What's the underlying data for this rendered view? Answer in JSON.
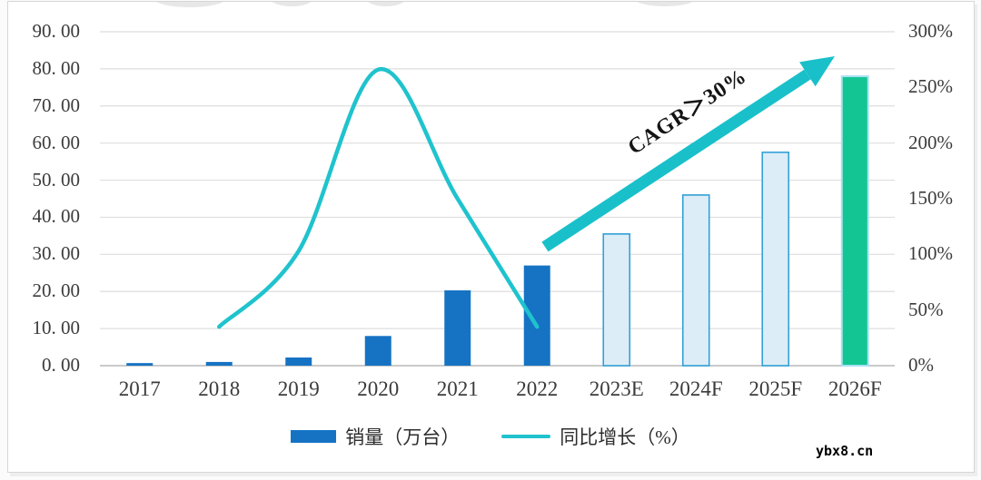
{
  "watermark": "ybx8.cn",
  "annotation": {
    "cagr_label": "CAGR＞30%"
  },
  "legend": [
    {
      "label": "销量（万台）",
      "type": "bar"
    },
    {
      "label": "同比增长（%）",
      "type": "line"
    }
  ],
  "colors": {
    "bar_actual": "#1673C4",
    "bar_forecast_fill": "#DCEDF7",
    "bar_forecast_stroke": "#33A1D6",
    "bar_final_fill": "#13C592",
    "bar_final_stroke": "#A9E1F3",
    "growth_line": "#1FC3CD",
    "arrow": "#19C0CA",
    "gridline": "#dedede",
    "axis_line": "#b9b9b9",
    "label_text": "#3b3b3b"
  },
  "chart_data": {
    "type": "bar",
    "title": "",
    "categories": [
      "2017",
      "2018",
      "2019",
      "2020",
      "2021",
      "2022",
      "2023E",
      "2024F",
      "2025F",
      "2026F"
    ],
    "series": [
      {
        "name": "销量（万台）",
        "type": "bar",
        "axis": "left",
        "values": [
          0.7,
          1.0,
          2.2,
          8.0,
          20.3,
          27.0,
          35.5,
          46.0,
          57.5,
          78.0
        ],
        "styles": [
          "actual",
          "actual",
          "actual",
          "actual",
          "actual",
          "actual",
          "forecast",
          "forecast",
          "forecast",
          "final"
        ]
      },
      {
        "name": "同比增长（%）",
        "type": "line",
        "axis": "right",
        "values": [
          null,
          35,
          103,
          266,
          150,
          35,
          null,
          null,
          null,
          null
        ]
      }
    ],
    "left_axis": {
      "min": 0,
      "max": 90,
      "tick_labels_top_to_bottom": [
        "90. 00",
        "80. 00",
        "70. 00",
        "60. 00",
        "50. 00",
        "40. 00",
        "30. 00",
        "20. 00",
        "10. 00",
        "0. 00"
      ]
    },
    "right_axis": {
      "min": 0,
      "max": 300,
      "tick_labels_top_to_bottom": [
        "300%",
        "250%",
        "200%",
        "150%",
        "100%",
        "50%",
        "0%"
      ]
    },
    "grid": true,
    "legend_position": "bottom"
  }
}
